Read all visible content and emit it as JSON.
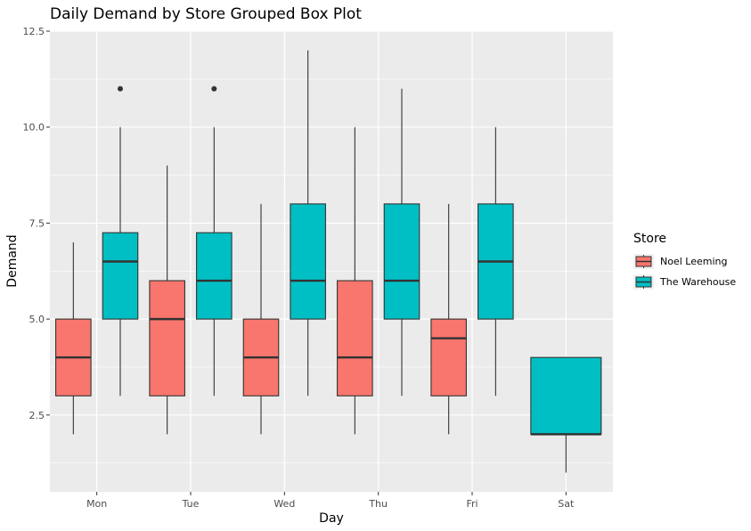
{
  "chart_data": {
    "type": "box",
    "title": "Daily Demand by Store Grouped Box Plot",
    "xlabel": "Day",
    "ylabel": "Demand",
    "ylim": [
      0.5,
      12.5
    ],
    "yticks": [
      2.5,
      5.0,
      7.5,
      10.0,
      12.5
    ],
    "ytick_labels": [
      "2.5",
      "5.0",
      "7.5",
      "10.0",
      "12.5"
    ],
    "categories": [
      "Mon",
      "Tue",
      "Wed",
      "Thu",
      "Fri",
      "Sat"
    ],
    "grid": true,
    "legend": {
      "title": "Store",
      "placement": "right"
    },
    "series": [
      {
        "name": "Noel Leeming",
        "color": "#F8766D",
        "boxes": [
          {
            "category": "Mon",
            "min": 2,
            "q1": 3,
            "median": 4,
            "q3": 5,
            "max": 7,
            "outliers": []
          },
          {
            "category": "Tue",
            "min": 2,
            "q1": 3,
            "median": 5,
            "q3": 6,
            "max": 9,
            "outliers": []
          },
          {
            "category": "Wed",
            "min": 2,
            "q1": 3,
            "median": 4,
            "q3": 5,
            "max": 8,
            "outliers": []
          },
          {
            "category": "Thu",
            "min": 2,
            "q1": 3,
            "median": 4,
            "q3": 6,
            "max": 10,
            "outliers": []
          },
          {
            "category": "Fri",
            "min": 2,
            "q1": 3,
            "median": 4.5,
            "q3": 5,
            "max": 8,
            "outliers": []
          }
        ]
      },
      {
        "name": "The Warehouse",
        "color": "#00BFC4",
        "boxes": [
          {
            "category": "Mon",
            "min": 3,
            "q1": 5,
            "median": 6.5,
            "q3": 7.25,
            "max": 10,
            "outliers": [
              11
            ]
          },
          {
            "category": "Tue",
            "min": 3,
            "q1": 5,
            "median": 6,
            "q3": 7.25,
            "max": 10,
            "outliers": [
              11
            ]
          },
          {
            "category": "Wed",
            "min": 3,
            "q1": 5,
            "median": 6,
            "q3": 8,
            "max": 12,
            "outliers": []
          },
          {
            "category": "Thu",
            "min": 3,
            "q1": 5,
            "median": 6,
            "q3": 8,
            "max": 11,
            "outliers": []
          },
          {
            "category": "Fri",
            "min": 3,
            "q1": 5,
            "median": 6.5,
            "q3": 8,
            "max": 10,
            "outliers": []
          },
          {
            "category": "Sat",
            "min": 1,
            "q1": 2,
            "median": 2,
            "q3": 4,
            "max": 4,
            "outliers": [],
            "full_width": true
          }
        ]
      }
    ]
  }
}
